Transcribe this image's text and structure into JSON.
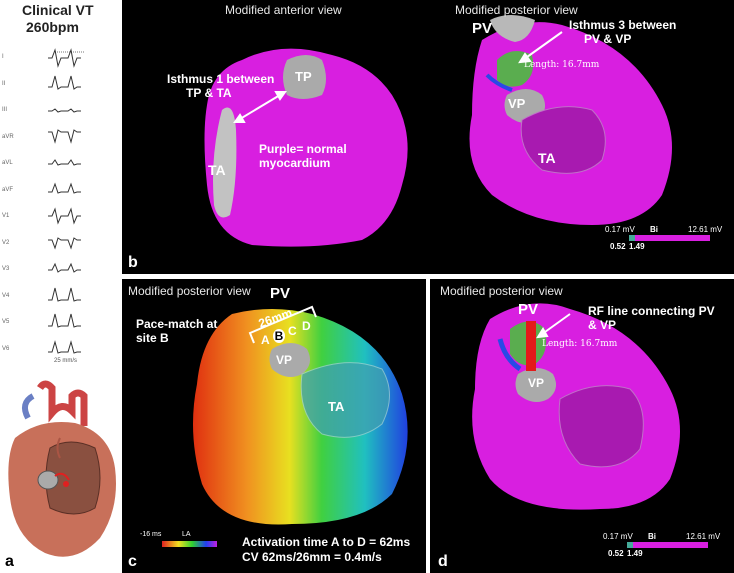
{
  "left": {
    "title_line1": "Clinical VT",
    "title_line2": "260bpm",
    "leads": [
      "I",
      "II",
      "III",
      "aVR",
      "aVL",
      "aVF",
      "V1",
      "V2",
      "V3",
      "V4",
      "V5",
      "V6"
    ],
    "speed": "25 mm/s",
    "letter": "a"
  },
  "panel_b": {
    "letter": "b",
    "view_left": "Modified anterior view",
    "view_right": "Modified posterior view",
    "tp": "TP",
    "ta_left": "TA",
    "isthmus1_l1": "Isthmus 1 between",
    "isthmus1_l2": "TP & TA",
    "purple_l1": "Purple= normal",
    "purple_l2": "myocardium",
    "pv": "PV",
    "vp": "VP",
    "ta_right": "TA",
    "isthmus3_l1": "Isthmus 3 between",
    "isthmus3_l2": "PV & VP",
    "length": "Length: 16.7mm",
    "scale_low": "0.17 mV",
    "scale_bi": "Bi",
    "scale_high": "12.61 mV",
    "scale_v1": "0.52",
    "scale_v2": "1.49"
  },
  "panel_c": {
    "letter": "c",
    "view": "Modified posterior view",
    "pv": "PV",
    "pace_l1": "Pace-match at",
    "pace_l2": "site B",
    "dist": "26mm",
    "a": "A",
    "b": "B",
    "c": "C",
    "d": "D",
    "vp": "VP",
    "ta": "TA",
    "scale_left": "-16 ms",
    "scale_la": "LA",
    "act_l1": "Activation time A to D = 62ms",
    "act_l2": "CV 62ms/26mm = 0.4m/s"
  },
  "panel_d": {
    "letter": "d",
    "view": "Modified posterior view",
    "pv": "PV",
    "vp": "VP",
    "rf_l1": "RF line connecting PV",
    "rf_l2": "& VP",
    "length": "Length: 16.7mm",
    "scale_low": "0.17 mV",
    "scale_bi": "Bi",
    "scale_high": "12.61 mV",
    "scale_v1": "0.52",
    "scale_v2": "1.49"
  },
  "colors": {
    "myocardium": "#d81fe0",
    "scar": "#b0b0b0",
    "isthmus_green": "#3bd12a",
    "border_blue": "#2a49e6",
    "rf_red": "#e31a1a"
  }
}
